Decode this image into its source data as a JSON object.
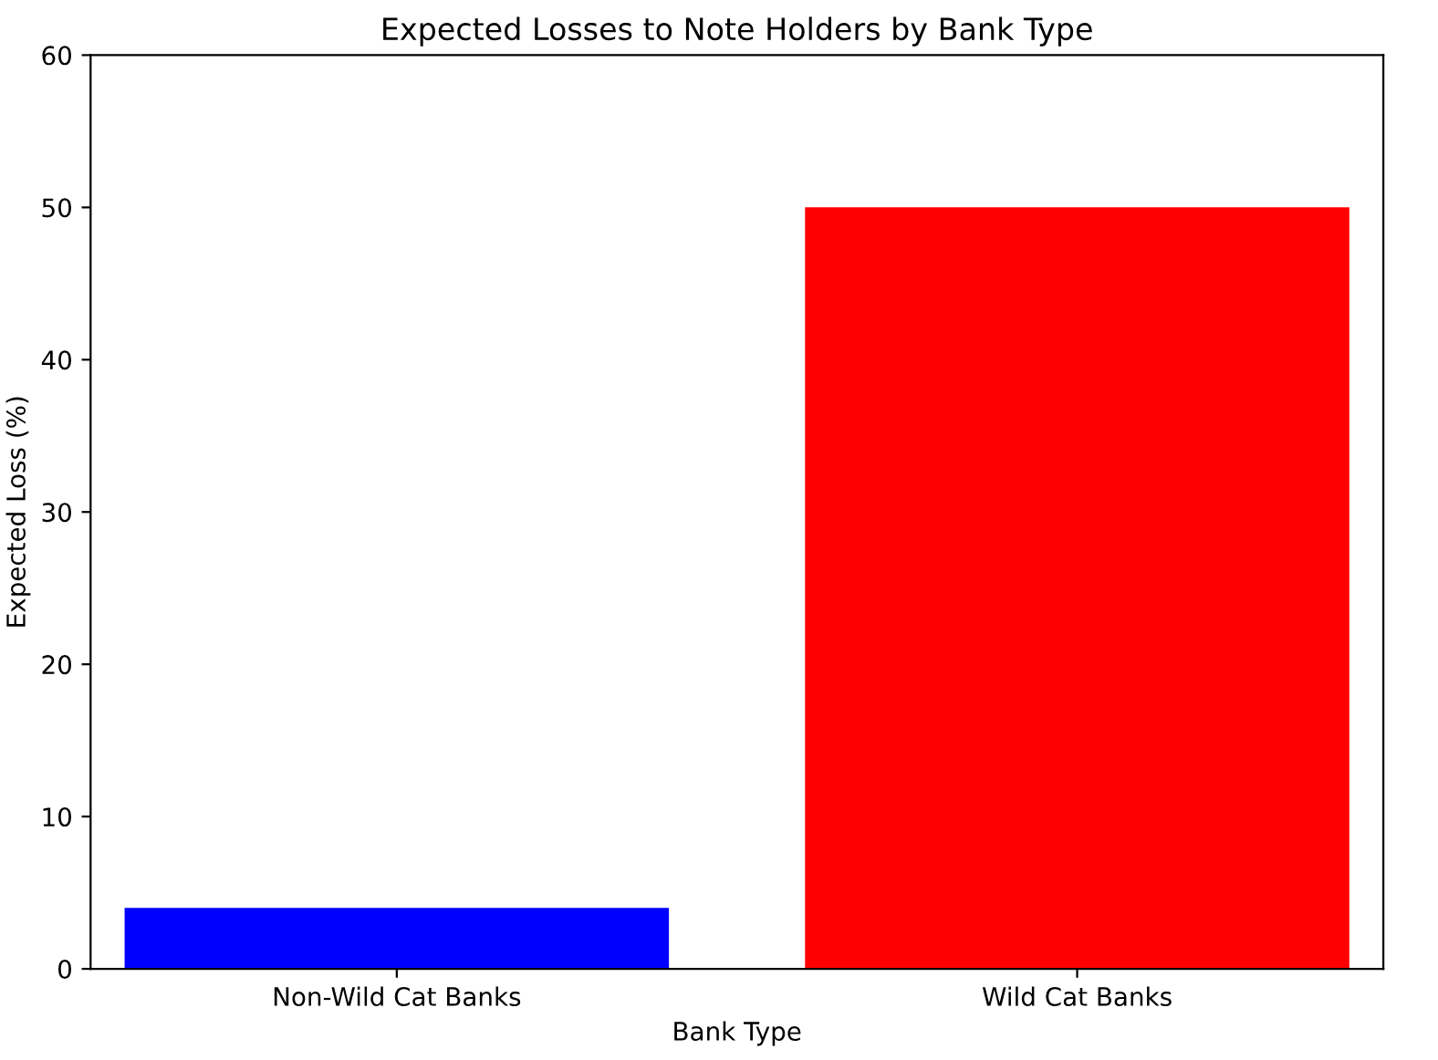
{
  "chart_data": {
    "type": "bar",
    "title": "Expected Losses to Note Holders by Bank Type",
    "xlabel": "Bank Type",
    "ylabel": "Expected Loss (%)",
    "categories": [
      "Non-Wild Cat Banks",
      "Wild Cat Banks"
    ],
    "values": [
      4,
      50
    ],
    "colors": [
      "#0000ff",
      "#ff0000"
    ],
    "ylim": [
      0,
      60
    ],
    "yticks": [
      0,
      10,
      20,
      30,
      40,
      50,
      60
    ],
    "grid": false
  }
}
